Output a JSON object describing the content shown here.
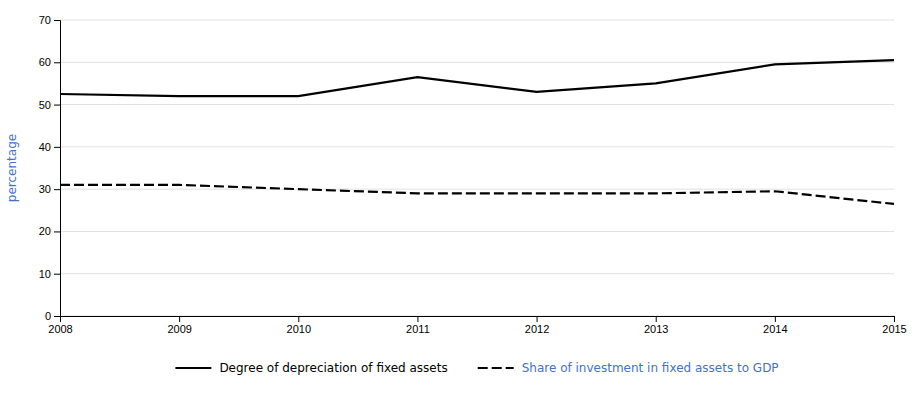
{
  "chart_data": {
    "type": "line",
    "x": [
      2008,
      2009,
      2010,
      2011,
      2012,
      2013,
      2014,
      2015
    ],
    "series": [
      {
        "name": "Degree of depreciation of fixed assets",
        "color": "#000000",
        "line_style": "solid",
        "values": [
          52.5,
          52.0,
          52.0,
          56.5,
          53.0,
          55.0,
          59.5,
          60.5
        ]
      },
      {
        "name": "Share of investment in fixed assets to GDP",
        "color": "#000000",
        "line_style": "dashed",
        "values": [
          31.0,
          31.0,
          30.0,
          29.0,
          29.0,
          29.0,
          29.5,
          26.5
        ]
      }
    ],
    "xlim": [
      2008,
      2015
    ],
    "xticks": [
      2008,
      2009,
      2010,
      2011,
      2012,
      2013,
      2014,
      2015
    ],
    "ylim": [
      0,
      70
    ],
    "yticks": [
      0,
      10,
      20,
      30,
      40,
      50,
      60,
      70
    ],
    "ylabel": "percentage",
    "grid": true,
    "legend": "bottom"
  }
}
